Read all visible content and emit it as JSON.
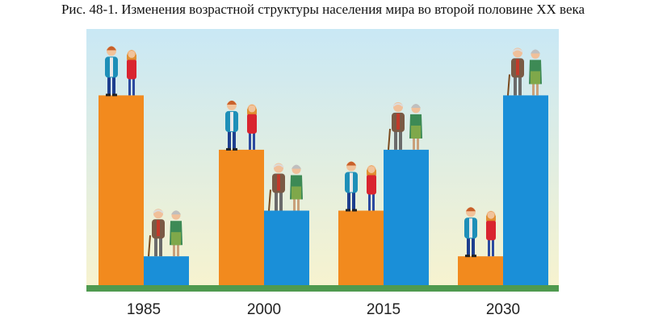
{
  "title": "Рис. 48-1. Изменения возрастной структуры населения мира во второй половине XX века",
  "chart_data": {
    "type": "bar",
    "categories": [
      "1985",
      "2000",
      "2015",
      "2030"
    ],
    "series": [
      {
        "values": [
          8.8,
          6.3,
          3.5,
          1.4
        ],
        "color": "#f28a1e"
      },
      {
        "values": [
          1.4,
          3.5,
          6.3,
          8.8
        ],
        "color": "#1a8fd8"
      }
    ],
    "ylim": [
      0,
      10
    ],
    "grid": false,
    "series_icons": [
      "young-couple-icon",
      "elderly-couple-icon"
    ],
    "background": {
      "top": "#c9e8f5",
      "bottom": "#f7f3cf",
      "ground": "#4f9a4f"
    }
  }
}
